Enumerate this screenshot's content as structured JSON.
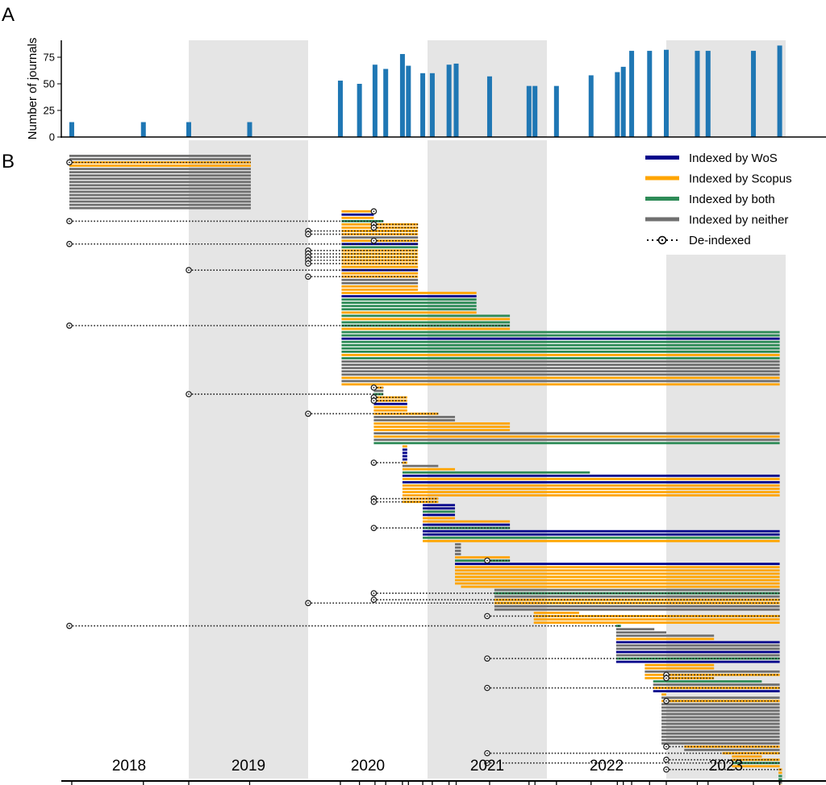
{
  "panel_labels": {
    "a": "A",
    "b": "B"
  },
  "colors": {
    "bar": "#1f77b4",
    "wos": "#00008b",
    "scopus": "#ffa500",
    "both": "#2e8b57",
    "neither": "#707070",
    "shade": "#e5e5e5",
    "deindexed": "#000000"
  },
  "chart_data": [
    {
      "type": "bar",
      "panel": "A",
      "ylabel": "Number of journals",
      "xlabel": "",
      "ylim": [
        0,
        92
      ],
      "yticks": [
        "0",
        "25",
        "50",
        "75"
      ],
      "x_unit": "year (decimal)",
      "x": [
        2018.02,
        2018.62,
        2019.0,
        2019.51,
        2020.27,
        2020.43,
        2020.56,
        2020.65,
        2020.79,
        2020.84,
        2020.96,
        2021.04,
        2021.18,
        2021.24,
        2021.52,
        2021.85,
        2021.9,
        2022.08,
        2022.37,
        2022.59,
        2022.64,
        2022.71,
        2022.86,
        2023.0,
        2023.26,
        2023.35,
        2023.73,
        2023.95
      ],
      "values": [
        14,
        14,
        14,
        14,
        53,
        50,
        68,
        64,
        78,
        67,
        60,
        60,
        68,
        69,
        57,
        48,
        48,
        48,
        58,
        61,
        66,
        81,
        81,
        82,
        81,
        81,
        81,
        86
      ]
    },
    {
      "type": "timeline",
      "panel": "B",
      "x_categories": [
        "2018",
        "2019",
        "2020",
        "2021",
        "2022",
        "2023"
      ],
      "shaded_years": [
        "2019",
        "2021",
        "2023"
      ],
      "legend": [
        {
          "label": "Indexed by WoS",
          "key": "wos"
        },
        {
          "label": "Indexed by Scopus",
          "key": "scopus"
        },
        {
          "label": "Indexed by both",
          "key": "both"
        },
        {
          "label": "Indexed by neither",
          "key": "neither"
        },
        {
          "label": "De-indexed",
          "key": "deindexed"
        }
      ],
      "legend_position": "top-right",
      "groups": [
        {
          "start": 2018.0,
          "end": 2019.52,
          "rows": [
            "neither",
            "neither",
            "scopus",
            "scopus",
            "neither",
            "neither",
            "neither",
            "neither",
            "neither",
            "neither",
            "neither",
            "neither",
            "neither",
            "neither",
            "neither",
            "neither",
            "neither"
          ],
          "deindexed": [
            {
              "row": 2,
              "from": 2018.0
            }
          ]
        },
        {
          "start": 2020.28,
          "end": 2020.55,
          "rows": [
            "scopus",
            "wos",
            "scopus"
          ],
          "deindexed": [
            {
              "row": 0,
              "from": 2020.55
            }
          ]
        },
        {
          "start": 2020.28,
          "end": 2020.63,
          "rows": [
            "both"
          ],
          "deindexed": [
            {
              "row": 0,
              "from": 2018.0
            }
          ]
        },
        {
          "start": 2020.28,
          "end": 2020.92,
          "rows": [
            "scopus",
            "scopus",
            "scopus",
            "scopus",
            "neither",
            "scopus",
            "wos",
            "both",
            "scopus",
            "scopus",
            "scopus",
            "scopus",
            "scopus",
            "scopus",
            "wos",
            "scopus",
            "scopus",
            "neither",
            "neither",
            "scopus",
            "scopus"
          ],
          "deindexed": [
            {
              "row": 0,
              "from": 2020.55
            },
            {
              "row": 1,
              "from": 2020.55
            },
            {
              "row": 2,
              "from": 2020.0
            },
            {
              "row": 3,
              "from": 2020.0
            },
            {
              "row": 5,
              "from": 2020.55
            },
            {
              "row": 6,
              "from": 2018.0
            },
            {
              "row": 8,
              "from": 2020.0
            },
            {
              "row": 9,
              "from": 2020.0
            },
            {
              "row": 10,
              "from": 2020.0
            },
            {
              "row": 11,
              "from": 2020.0
            },
            {
              "row": 12,
              "from": 2020.0
            },
            {
              "row": 14,
              "from": 2019.0
            },
            {
              "row": 16,
              "from": 2020.0
            }
          ]
        },
        {
          "start": 2020.28,
          "end": 2021.41,
          "rows": [
            "scopus",
            "wos",
            "both",
            "both",
            "both",
            "both",
            "scopus"
          ],
          "deindexed": []
        },
        {
          "start": 2020.28,
          "end": 2021.69,
          "rows": [
            "both",
            "scopus",
            "both",
            "both",
            "scopus"
          ],
          "deindexed": [
            {
              "row": 3,
              "from": 2018.0
            }
          ]
        },
        {
          "start": 2020.28,
          "end": 2023.95,
          "rows": [
            "both",
            "both",
            "wos",
            "both",
            "both",
            "both",
            "both",
            "scopus",
            "both",
            "neither",
            "neither",
            "neither",
            "neither",
            "neither",
            "scopus",
            "neither",
            "scopus"
          ],
          "deindexed": []
        },
        {
          "start": 2020.55,
          "end": 2020.63,
          "rows": [
            "scopus",
            "neither",
            "both"
          ],
          "deindexed": [
            {
              "row": 0,
              "from": 2020.55
            },
            {
              "row": 2,
              "from": 2019.0
            }
          ]
        },
        {
          "start": 2020.55,
          "end": 2020.83,
          "rows": [
            "scopus",
            "scopus",
            "wos",
            "scopus",
            "scopus"
          ],
          "deindexed": [
            {
              "row": 0,
              "from": 2020.55
            },
            {
              "row": 1,
              "from": 2020.55
            }
          ]
        },
        {
          "start": 2020.55,
          "end": 2021.09,
          "rows": [
            "scopus"
          ],
          "deindexed": [
            {
              "row": 0,
              "from": 2020.0
            }
          ]
        },
        {
          "start": 2020.55,
          "end": 2021.23,
          "rows": [
            "neither",
            "neither"
          ],
          "deindexed": []
        },
        {
          "start": 2020.55,
          "end": 2021.69,
          "rows": [
            "scopus",
            "scopus",
            "scopus"
          ],
          "deindexed": []
        },
        {
          "start": 2020.55,
          "end": 2023.95,
          "rows": [
            "neither",
            "scopus",
            "neither",
            "both"
          ],
          "deindexed": []
        },
        {
          "start": 2020.79,
          "end": 2020.83,
          "rows": [
            "scopus",
            "wos",
            "wos",
            "wos",
            "wos",
            "scopus"
          ],
          "deindexed": [
            {
              "row": 5,
              "from": 2020.55
            }
          ]
        },
        {
          "start": 2020.79,
          "end": 2021.09,
          "rows": [
            "neither"
          ],
          "deindexed": []
        },
        {
          "start": 2020.79,
          "end": 2021.23,
          "rows": [
            "scopus"
          ],
          "deindexed": []
        },
        {
          "start": 2020.79,
          "end": 2022.36,
          "rows": [
            "both"
          ],
          "deindexed": []
        },
        {
          "start": 2020.79,
          "end": 2023.95,
          "rows": [
            "wos",
            "scopus",
            "wos",
            "scopus",
            "scopus",
            "scopus",
            "scopus"
          ],
          "deindexed": []
        },
        {
          "start": 2020.79,
          "end": 2021.09,
          "rows": [
            "scopus",
            "scopus"
          ],
          "deindexed": [
            {
              "row": 0,
              "from": 2020.55
            },
            {
              "row": 1,
              "from": 2020.55
            }
          ]
        },
        {
          "start": 2020.96,
          "end": 2021.23,
          "rows": [
            "wos",
            "wos",
            "both",
            "wos",
            "scopus"
          ],
          "deindexed": []
        },
        {
          "start": 2020.96,
          "end": 2021.69,
          "rows": [
            "scopus",
            "wos",
            "both"
          ],
          "deindexed": [
            {
              "row": 2,
              "from": 2020.55
            }
          ]
        },
        {
          "start": 2020.96,
          "end": 2023.95,
          "rows": [
            "wos",
            "wos",
            "both",
            "scopus"
          ],
          "deindexed": []
        },
        {
          "start": 2021.23,
          "end": 2021.28,
          "rows": [
            "neither",
            "neither",
            "neither",
            "neither"
          ],
          "deindexed": []
        },
        {
          "start": 2021.23,
          "end": 2021.69,
          "rows": [
            "scopus",
            "both"
          ],
          "deindexed": [
            {
              "row": 1,
              "from": 2021.5
            }
          ]
        },
        {
          "start": 2021.23,
          "end": 2023.95,
          "rows": [
            "wos",
            "scopus",
            "scopus",
            "scopus",
            "scopus",
            "scopus",
            "scopus"
          ],
          "deindexed": []
        },
        {
          "start": 2021.28,
          "end": 2023.95,
          "rows": [
            "scopus"
          ],
          "deindexed": []
        },
        {
          "start": 2021.56,
          "end": 2023.95,
          "rows": [
            "neither",
            "both",
            "neither",
            "scopus",
            "scopus",
            "neither",
            "neither"
          ],
          "deindexed": [
            {
              "row": 1,
              "from": 2020.55
            },
            {
              "row": 3,
              "from": 2020.55
            },
            {
              "row": 4,
              "from": 2020.0
            }
          ]
        },
        {
          "start": 2021.89,
          "end": 2022.27,
          "rows": [
            "scopus"
          ],
          "deindexed": []
        },
        {
          "start": 2021.89,
          "end": 2023.95,
          "rows": [
            "scopus",
            "scopus",
            "scopus"
          ],
          "deindexed": [
            {
              "row": 0,
              "from": 2021.5
            }
          ]
        },
        {
          "start": 2022.58,
          "end": 2022.62,
          "rows": [
            "both"
          ],
          "deindexed": [
            {
              "row": 0,
              "from": 2018.0
            }
          ]
        },
        {
          "start": 2022.58,
          "end": 2022.9,
          "rows": [
            "neither"
          ],
          "deindexed": []
        },
        {
          "start": 2022.58,
          "end": 2023.0,
          "rows": [
            "neither"
          ],
          "deindexed": []
        },
        {
          "start": 2022.58,
          "end": 2023.4,
          "rows": [
            "neither",
            "scopus"
          ],
          "deindexed": []
        },
        {
          "start": 2022.58,
          "end": 2023.95,
          "rows": [
            "wos",
            "neither",
            "neither",
            "wos",
            "neither",
            "both",
            "wos"
          ],
          "deindexed": [
            {
              "row": 5,
              "from": 2021.5
            }
          ]
        },
        {
          "start": 2022.82,
          "end": 2023.4,
          "rows": [
            "scopus",
            "scopus"
          ],
          "deindexed": []
        },
        {
          "start": 2022.82,
          "end": 2023.95,
          "rows": [
            "neither",
            "scopus"
          ],
          "deindexed": [
            {
              "row": 1,
              "from": 2023.0
            }
          ]
        },
        {
          "start": 2022.82,
          "end": 2023.4,
          "rows": [
            "scopus"
          ],
          "deindexed": [
            {
              "row": 0,
              "from": 2023.0
            }
          ]
        },
        {
          "start": 2022.89,
          "end": 2023.8,
          "rows": [
            "both"
          ],
          "deindexed": []
        },
        {
          "start": 2022.89,
          "end": 2023.95,
          "rows": [
            "neither",
            "scopus",
            "wos"
          ],
          "deindexed": [
            {
              "row": 1,
              "from": 2021.5
            }
          ]
        },
        {
          "start": 2022.96,
          "end": 2023.0,
          "rows": [
            "scopus"
          ],
          "deindexed": []
        },
        {
          "start": 2022.96,
          "end": 2023.95,
          "rows": [
            "neither",
            "scopus",
            "neither",
            "neither",
            "neither",
            "neither",
            "neither",
            "neither",
            "neither",
            "neither",
            "neither",
            "neither",
            "neither",
            "neither",
            "neither"
          ],
          "deindexed": [
            {
              "row": 1,
              "from": 2023.0
            }
          ]
        },
        {
          "start": 2023.15,
          "end": 2023.95,
          "rows": [
            "scopus",
            "neither"
          ],
          "deindexed": [
            {
              "row": 0,
              "from": 2023.0
            }
          ]
        },
        {
          "start": 2023.47,
          "end": 2023.95,
          "rows": [
            "scopus"
          ],
          "deindexed": [
            {
              "row": 0,
              "from": 2021.5
            }
          ]
        },
        {
          "start": 2023.55,
          "end": 2023.8,
          "rows": [
            "scopus"
          ],
          "deindexed": []
        },
        {
          "start": 2023.55,
          "end": 2023.95,
          "rows": [
            "scopus",
            "both",
            "scopus"
          ],
          "deindexed": [
            {
              "row": 0,
              "from": 2023.0
            },
            {
              "row": 1,
              "from": 2021.5
            }
          ]
        },
        {
          "start": 2023.94,
          "end": 2023.97,
          "rows": [
            "scopus",
            "scopus",
            "both",
            "both",
            "neither",
            "scopus",
            "neither"
          ],
          "deindexed": [
            {
              "row": 0,
              "from": 2023.0
            }
          ]
        }
      ]
    }
  ]
}
